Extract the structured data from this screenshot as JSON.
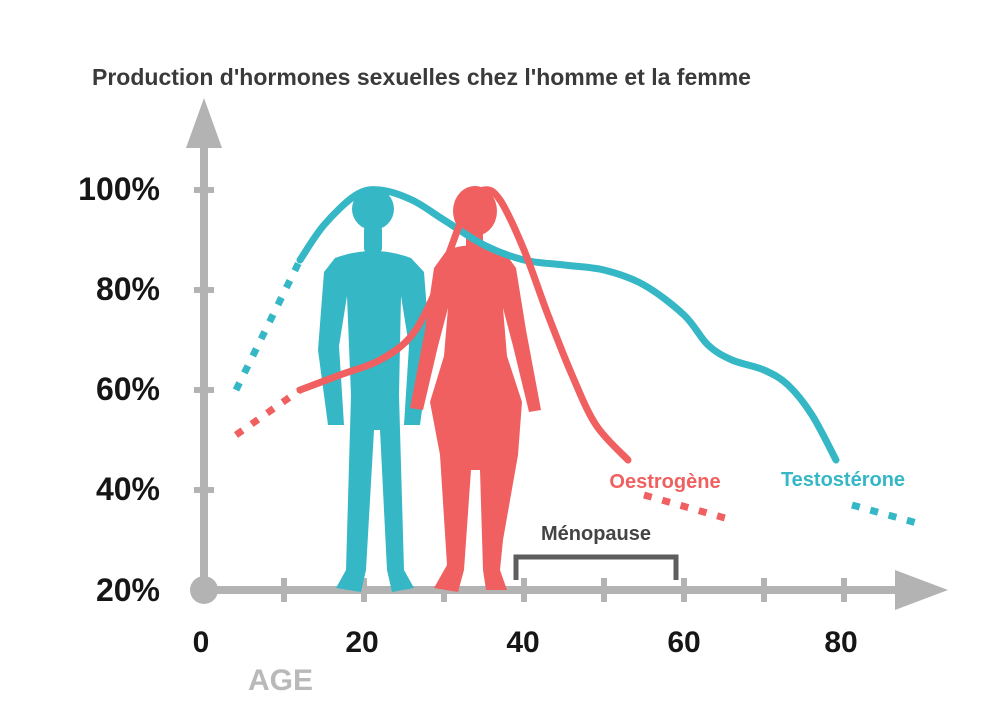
{
  "chart_data": {
    "type": "line",
    "title": "Production d'hormones sexuelles chez l'homme et la femme",
    "xlabel": "AGE",
    "ylabel": "",
    "x_ticks": [
      "0",
      "20",
      "40",
      "60",
      "80"
    ],
    "y_ticks": [
      "100%",
      "80%",
      "60%",
      "40%",
      "20%"
    ],
    "xlim": [
      0,
      90
    ],
    "ylim": [
      20,
      100
    ],
    "grid": false,
    "legend": "inline-labels",
    "series": [
      {
        "name": "Testostérone",
        "color": "#35b7c6",
        "points": [
          {
            "x": 12,
            "y": 86
          },
          {
            "x": 15,
            "y": 93
          },
          {
            "x": 19,
            "y": 99
          },
          {
            "x": 22,
            "y": 100
          },
          {
            "x": 26,
            "y": 98
          },
          {
            "x": 30,
            "y": 94
          },
          {
            "x": 35,
            "y": 89
          },
          {
            "x": 40,
            "y": 86
          },
          {
            "x": 45,
            "y": 85
          },
          {
            "x": 50,
            "y": 84
          },
          {
            "x": 55,
            "y": 81
          },
          {
            "x": 60,
            "y": 75
          },
          {
            "x": 63,
            "y": 69
          },
          {
            "x": 66,
            "y": 66
          },
          {
            "x": 70,
            "y": 64
          },
          {
            "x": 73,
            "y": 61
          },
          {
            "x": 76,
            "y": 55
          },
          {
            "x": 79,
            "y": 46
          }
        ],
        "dotted_start": [
          {
            "x": 4,
            "y": 60
          },
          {
            "x": 12,
            "y": 86
          }
        ],
        "dotted_end": [
          {
            "x": 81,
            "y": 37
          },
          {
            "x": 90,
            "y": 33
          }
        ]
      },
      {
        "name": "Oestrogène",
        "color": "#f06060",
        "points": [
          {
            "x": 12,
            "y": 60
          },
          {
            "x": 17,
            "y": 63
          },
          {
            "x": 22,
            "y": 66
          },
          {
            "x": 26,
            "y": 71
          },
          {
            "x": 29,
            "y": 80
          },
          {
            "x": 31,
            "y": 89
          },
          {
            "x": 33,
            "y": 97
          },
          {
            "x": 35,
            "y": 100
          },
          {
            "x": 37,
            "y": 98
          },
          {
            "x": 40,
            "y": 88
          },
          {
            "x": 43,
            "y": 75
          },
          {
            "x": 46,
            "y": 63
          },
          {
            "x": 49,
            "y": 53
          },
          {
            "x": 53,
            "y": 46
          }
        ],
        "dotted_start": [
          {
            "x": 4,
            "y": 51
          },
          {
            "x": 12,
            "y": 60
          }
        ],
        "dotted_end": [
          {
            "x": 55,
            "y": 39
          },
          {
            "x": 66,
            "y": 34
          }
        ]
      }
    ],
    "annotations": [
      {
        "text": "Ménopause",
        "x_start": 40,
        "x_end": 60
      }
    ]
  }
}
